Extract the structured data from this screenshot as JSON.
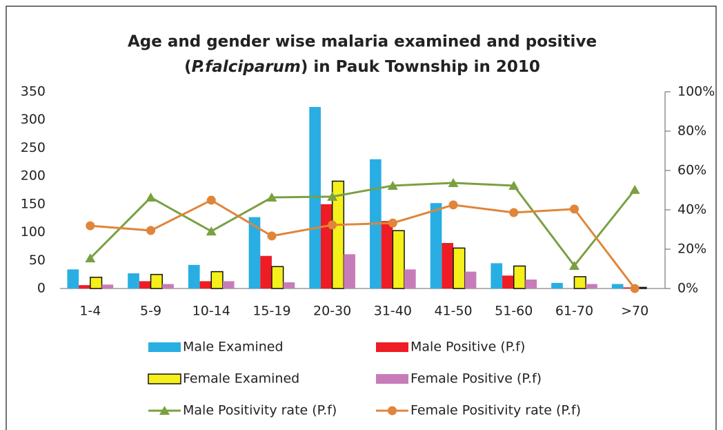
{
  "chart_data": {
    "type": "bar",
    "title": [
      "Age and gender wise malaria examined and positive",
      [
        {
          "text": "(",
          "italic": false
        },
        {
          "text": "P.falciparum",
          "italic": true
        },
        {
          "text": ") in Pauk Township in 2010",
          "italic": false
        }
      ]
    ],
    "categories": [
      "1-4",
      "5-9",
      "10-14",
      "15-19",
      "20-30",
      "31-40",
      "41-50",
      "51-60",
      "61-70",
      ">70"
    ],
    "series": [
      {
        "name": "Male Examined",
        "color": "#29aee3",
        "values": [
          34,
          27,
          42,
          127,
          323,
          230,
          152,
          45,
          10,
          8
        ]
      },
      {
        "name": "Male Positive (P.f)",
        "color": "#ee1c24",
        "values": [
          6,
          13,
          13,
          58,
          150,
          120,
          81,
          23,
          0,
          2
        ]
      },
      {
        "name": "Female Examined",
        "color": "#f5ef1a",
        "stroke": "#111",
        "values": [
          20,
          25,
          30,
          39,
          191,
          103,
          72,
          40,
          21,
          2
        ]
      },
      {
        "name": "Female Positive (P.f)",
        "color": "#c77cb9",
        "values": [
          7,
          8,
          13,
          11,
          61,
          34,
          30,
          16,
          8,
          0
        ]
      },
      {
        "name": "Male Positivity rate (P.f)",
        "type": "line",
        "axis": "y2",
        "marker": "triangle",
        "color": "#7aa042",
        "values": [
          15.4,
          46.3,
          29.1,
          46.3,
          46.7,
          52.3,
          53.7,
          52.3,
          11.6,
          50.2
        ]
      },
      {
        "name": "Female Positivity rate (P.f)",
        "type": "line",
        "axis": "y2",
        "marker": "circle",
        "color": "#e0853a",
        "values": [
          31.9,
          29.5,
          44.9,
          26.7,
          32.3,
          33.3,
          42.5,
          38.6,
          40.4,
          0
        ]
      }
    ],
    "ylim": [
      0,
      350
    ],
    "yticks": [
      0,
      50,
      100,
      150,
      200,
      250,
      300,
      350
    ],
    "y2lim": [
      0,
      100
    ],
    "y2ticks": [
      {
        "value": 0,
        "label": "0%"
      },
      {
        "value": 20,
        "label": "20%"
      },
      {
        "value": 40,
        "label": "40%"
      },
      {
        "value": 60,
        "label": "60%"
      },
      {
        "value": 80,
        "label": "80%"
      },
      {
        "value": 100,
        "label": "100%"
      }
    ],
    "grid": false
  }
}
